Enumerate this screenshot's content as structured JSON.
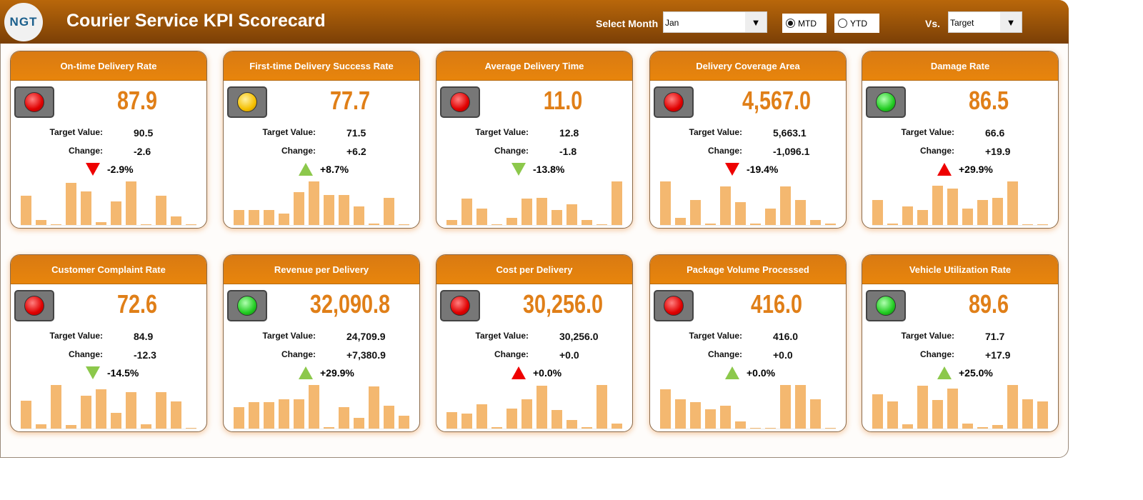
{
  "header": {
    "logo": "NGT",
    "title": "Courier Service KPI Scorecard",
    "select_month_label": "Select Month",
    "month": "Jan",
    "mtd": "MTD",
    "ytd": "YTD",
    "mode_selected": "MTD",
    "vs_label": "Vs.",
    "vs_value": "Target"
  },
  "labels": {
    "target": "Target Value:",
    "change": "Change:"
  },
  "colors": {
    "red": "#ee0000",
    "green": "#8cc84b",
    "accent": "#e07f18",
    "bar": "#f4b870"
  },
  "cards": [
    {
      "title": "On-time Delivery Rate",
      "value": "87.9",
      "light": "red",
      "target": "90.5",
      "change": "-2.6",
      "pct": "-2.9%",
      "arrow": "down",
      "arrow_color": "red",
      "trend": [
        0.67,
        0.12,
        0.01,
        0.96,
        0.77,
        0.07,
        0.54,
        1.0,
        0.02,
        0.67,
        0.2,
        0.01
      ]
    },
    {
      "title": "First-time Delivery Success Rate",
      "value": "77.7",
      "light": "yellow",
      "target": "71.5",
      "change": "+6.2",
      "pct": "+8.7%",
      "arrow": "up",
      "arrow_color": "green",
      "trend": [
        0.34,
        0.34,
        0.35,
        0.26,
        0.76,
        1.0,
        0.69,
        0.69,
        0.43,
        0.04,
        0.62,
        0.02
      ]
    },
    {
      "title": "Average Delivery Time",
      "value": "11.0",
      "light": "red",
      "target": "12.8",
      "change": "-1.8",
      "pct": "-13.8%",
      "arrow": "down",
      "arrow_color": "green",
      "trend": [
        0.11,
        0.61,
        0.38,
        0.01,
        0.16,
        0.61,
        0.63,
        0.34,
        0.48,
        0.11,
        0.02,
        1.0
      ]
    },
    {
      "title": "Delivery Coverage Area",
      "value": "4,567.0",
      "light": "red",
      "target": "5,663.1",
      "change": "-1,096.1",
      "pct": "-19.4%",
      "arrow": "down",
      "arrow_color": "red",
      "trend": [
        1.0,
        0.16,
        0.58,
        0.04,
        0.89,
        0.53,
        0.04,
        0.37,
        0.88,
        0.58,
        0.12,
        0.04
      ]
    },
    {
      "title": "Damage Rate",
      "value": "86.5",
      "light": "green",
      "target": "66.6",
      "change": "+19.9",
      "pct": "+29.9%",
      "arrow": "up",
      "arrow_color": "red",
      "trend": [
        0.57,
        0.03,
        0.43,
        0.34,
        0.91,
        0.84,
        0.38,
        0.57,
        0.62,
        1.0,
        0.02,
        0.02
      ]
    },
    {
      "title": "Customer Complaint Rate",
      "value": "72.6",
      "light": "red",
      "target": "84.9",
      "change": "-12.3",
      "pct": "-14.5%",
      "arrow": "down",
      "arrow_color": "green",
      "trend": [
        0.64,
        0.1,
        1.0,
        0.09,
        0.76,
        0.9,
        0.36,
        0.83,
        0.1,
        0.83,
        0.62,
        0.02
      ]
    },
    {
      "title": "Revenue per Delivery",
      "value": "32,090.8",
      "light": "green",
      "target": "24,709.9",
      "change": "+7,380.9",
      "pct": "+29.9%",
      "arrow": "up",
      "arrow_color": "green",
      "trend": [
        0.5,
        0.6,
        0.6,
        0.67,
        0.67,
        1.0,
        0.03,
        0.5,
        0.25,
        0.97,
        0.52,
        0.3
      ]
    },
    {
      "title": "Cost per Delivery",
      "value": "30,256.0",
      "light": "red",
      "target": "30,256.0",
      "change": "+0.0",
      "pct": "+0.0%",
      "arrow": "up",
      "arrow_color": "red",
      "trend": [
        0.37,
        0.34,
        0.56,
        0.03,
        0.46,
        0.68,
        0.98,
        0.42,
        0.19,
        0.03,
        1.0,
        0.12
      ]
    },
    {
      "title": "Package Volume Processed",
      "value": "416.0",
      "light": "red",
      "target": "416.0",
      "change": "+0.0",
      "pct": "+0.0%",
      "arrow": "up",
      "arrow_color": "green",
      "trend": [
        0.91,
        0.67,
        0.6,
        0.44,
        0.53,
        0.16,
        0.02,
        0.02,
        1.0,
        1.0,
        0.68,
        0.02
      ]
    },
    {
      "title": "Vehicle Utilization Rate",
      "value": "89.6",
      "light": "green",
      "target": "71.7",
      "change": "+17.9",
      "pct": "+25.0%",
      "arrow": "up",
      "arrow_color": "green",
      "trend": [
        0.78,
        0.63,
        0.1,
        0.98,
        0.65,
        0.92,
        0.12,
        0.03,
        0.08,
        1.0,
        0.68,
        0.62
      ]
    }
  ]
}
